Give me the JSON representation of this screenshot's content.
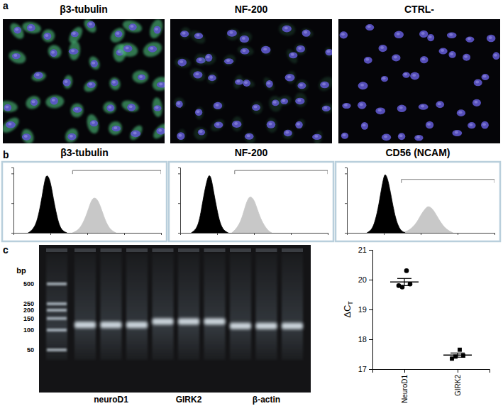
{
  "panel_labels": [
    "a",
    "b",
    "c"
  ],
  "microscopy": {
    "titles": [
      "β3-tubulin",
      "NF-200",
      "CTRL-"
    ]
  },
  "gel": {
    "unit": "bp",
    "ladder": [
      500,
      250,
      200,
      150,
      100,
      50
    ],
    "groups": [
      {
        "label": "neuroD1",
        "bands_bp": [
          120,
          120,
          120
        ]
      },
      {
        "label": "GIRK2",
        "bands_bp": [
          135,
          135,
          135
        ]
      },
      {
        "label": "β-actin",
        "bands_bp": [
          115,
          115,
          115
        ]
      }
    ]
  },
  "chart_data": [
    {
      "type": "area",
      "title": "β3-tubulin",
      "log": "x",
      "xlim": [
        1,
        10000
      ],
      "xticks": [
        1,
        10,
        100,
        1000,
        10000
      ],
      "ylim": [
        0,
        110
      ],
      "yticks": [
        0,
        50,
        100
      ],
      "tick_labels": false,
      "gate": [
        40,
        10000
      ],
      "gate_level": 105,
      "series": [
        {
          "color": "#000000",
          "x": [
            2.5,
            3,
            4,
            5,
            6,
            7,
            8,
            10,
            12,
            15,
            18,
            22,
            28
          ],
          "values": [
            0,
            3,
            12,
            35,
            62,
            88,
            100,
            88,
            58,
            28,
            10,
            3,
            0
          ]
        },
        {
          "color": "#c8c8c8",
          "x": [
            40,
            55,
            70,
            90,
            110,
            130,
            155,
            190,
            230,
            280,
            350,
            450,
            600
          ],
          "values": [
            0,
            4,
            12,
            26,
            42,
            55,
            60,
            56,
            44,
            28,
            13,
            4,
            0
          ]
        }
      ]
    },
    {
      "type": "area",
      "title": "NF-200",
      "log": "x",
      "xlim": [
        1,
        10000
      ],
      "xticks": [
        1,
        10,
        100,
        1000,
        10000
      ],
      "ylim": [
        0,
        110
      ],
      "yticks": [
        0,
        50,
        100
      ],
      "tick_labels": false,
      "gate": [
        30,
        10000
      ],
      "gate_level": 105,
      "series": [
        {
          "color": "#000000",
          "x": [
            2,
            2.5,
            3,
            3.5,
            4,
            5,
            6,
            7,
            8,
            10,
            12,
            15,
            20
          ],
          "values": [
            0,
            4,
            12,
            28,
            50,
            82,
            100,
            92,
            70,
            38,
            16,
            4,
            0
          ]
        },
        {
          "color": "#c8c8c8",
          "x": [
            25,
            30,
            40,
            50,
            60,
            70,
            80,
            100,
            120,
            150,
            200,
            250,
            300
          ],
          "values": [
            0,
            4,
            14,
            30,
            48,
            58,
            62,
            56,
            42,
            24,
            10,
            3,
            0
          ]
        }
      ]
    },
    {
      "type": "area",
      "title": "CD56 (NCAM)",
      "log": "x",
      "xlim": [
        1,
        10000
      ],
      "xticks": [
        1,
        10,
        100,
        1000,
        10000
      ],
      "ylim": [
        0,
        110
      ],
      "yticks": [
        0,
        50,
        100
      ],
      "tick_labels": false,
      "gate": [
        30,
        10000
      ],
      "gate_level": 90,
      "series": [
        {
          "color": "#000000",
          "x": [
            3.5,
            4.5,
            5.5,
            7,
            8.5,
            10,
            11,
            13,
            16,
            20,
            25,
            30,
            38
          ],
          "values": [
            0,
            4,
            14,
            40,
            72,
            95,
            100,
            90,
            60,
            28,
            10,
            3,
            0
          ]
        },
        {
          "color": "#c8c8c8",
          "x": [
            30,
            45,
            60,
            80,
            100,
            130,
            155,
            190,
            240,
            300,
            400,
            550,
            750
          ],
          "values": [
            0,
            3,
            9,
            18,
            30,
            40,
            45,
            43,
            35,
            24,
            12,
            4,
            0
          ]
        }
      ]
    },
    {
      "type": "dot",
      "categories": [
        "NeuroD1",
        "GIRK2"
      ],
      "ylabel": "ΔCT",
      "ylim": [
        17,
        21
      ],
      "yticks": [
        17,
        18,
        19,
        20,
        21
      ],
      "points": [
        [
          19.8,
          19.85,
          20.3,
          19.75
        ],
        [
          17.35,
          17.45,
          17.65,
          17.42
        ]
      ],
      "means": [
        19.92,
        17.47
      ],
      "errors": [
        0.12,
        0.07
      ]
    }
  ]
}
